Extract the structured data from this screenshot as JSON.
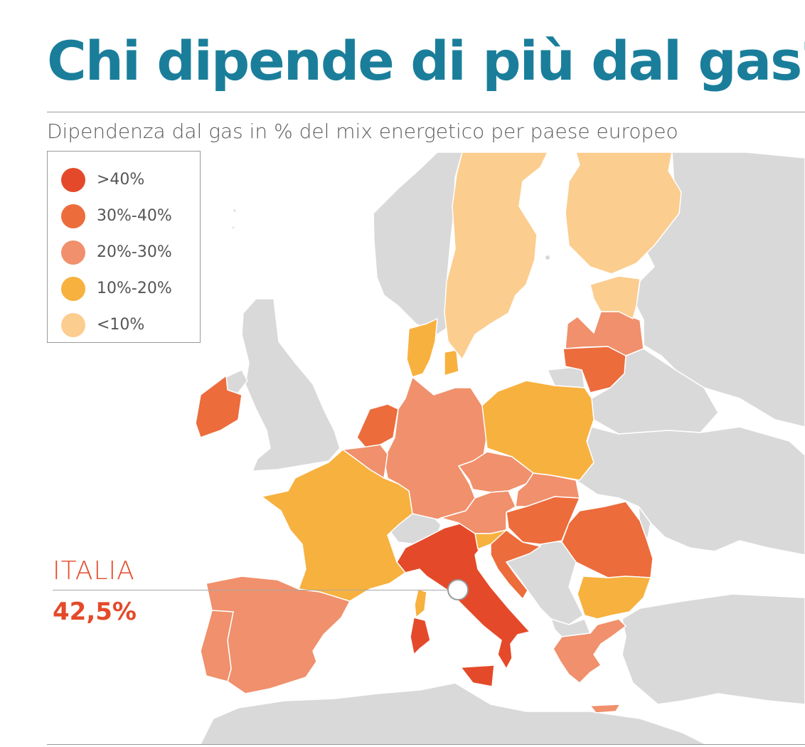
{
  "title": "Chi dipende di più dal gas?",
  "subtitle": "Dipendenza dal gas in % del mix energetico per paese europeo",
  "colors": {
    "gt40": "#e44a2a",
    "c30_40": "#ec6c3c",
    "c20_30": "#f0906c",
    "c10_20": "#f7b13f",
    "lt10": "#fbcd8f",
    "nodata": "#d9d9d9",
    "title": "#1a7e9b"
  },
  "legend": {
    "items": [
      {
        "label": ">40%",
        "color": "#e44a2a"
      },
      {
        "label": "30%-40%",
        "color": "#ec6c3c"
      },
      {
        "label": "20%-30%",
        "color": "#f0906c"
      },
      {
        "label": "10%-20%",
        "color": "#f7b13f"
      },
      {
        "label": "<10%",
        "color": "#fbcd8f"
      }
    ]
  },
  "callout": {
    "country": "ITALIA",
    "value": "42,5%"
  },
  "map": {
    "countries": [
      {
        "name": "Italia",
        "category": ">40%"
      },
      {
        "name": "Irlanda",
        "category": "30%-40%"
      },
      {
        "name": "Paesi Bassi",
        "category": "30%-40%"
      },
      {
        "name": "Lituania",
        "category": "30%-40%"
      },
      {
        "name": "Ungheria",
        "category": "30%-40%"
      },
      {
        "name": "Romania",
        "category": "30%-40%"
      },
      {
        "name": "Croazia",
        "category": "30%-40%"
      },
      {
        "name": "Spagna",
        "category": "20%-30%"
      },
      {
        "name": "Portogallo",
        "category": "20%-30%"
      },
      {
        "name": "Germania",
        "category": "20%-30%"
      },
      {
        "name": "Belgio",
        "category": "20%-30%"
      },
      {
        "name": "Austria",
        "category": "20%-30%"
      },
      {
        "name": "Repubblica Ceca",
        "category": "20%-30%"
      },
      {
        "name": "Slovacchia",
        "category": "20%-30%"
      },
      {
        "name": "Lettonia",
        "category": "20%-30%"
      },
      {
        "name": "Grecia",
        "category": "20%-30%"
      },
      {
        "name": "Francia",
        "category": "10%-20%"
      },
      {
        "name": "Polonia",
        "category": "10%-20%"
      },
      {
        "name": "Danimarca",
        "category": "10%-20%"
      },
      {
        "name": "Slovenia",
        "category": "10%-20%"
      },
      {
        "name": "Bulgaria",
        "category": "10%-20%"
      },
      {
        "name": "Svezia",
        "category": "<10%"
      },
      {
        "name": "Finlandia",
        "category": "<10%"
      },
      {
        "name": "Estonia",
        "category": "<10%"
      }
    ]
  }
}
